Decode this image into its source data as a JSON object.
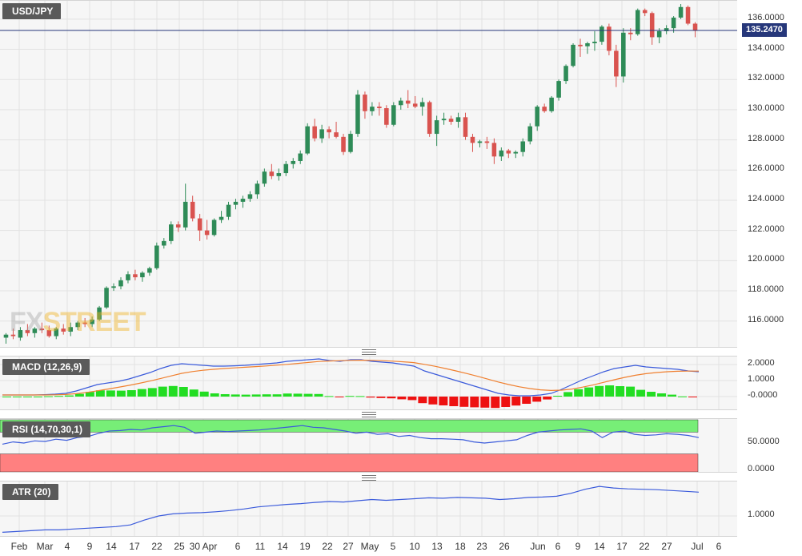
{
  "symbol": "USD/JPY",
  "last_price": "135.2470",
  "last_price_value": 135.247,
  "watermark": {
    "main": "FX",
    "accent": "STREET"
  },
  "colors": {
    "up": "#2e8b57",
    "down": "#d9534f",
    "macd_line": "#3b5bdb",
    "signal_line": "#f08030",
    "hist_pos": "#22dd22",
    "hist_neg": "#ee1111",
    "rsi_line": "#3b5bdb",
    "atr_line": "#3b5bdb",
    "last_price": "#26377a",
    "overbought_zone": "#77ee77",
    "oversold_zone": "#ff8080"
  },
  "panes": {
    "macd": {
      "title": "MACD (12,26,9)",
      "ticks": [
        "2.0000",
        "1.0000",
        "-0.0000"
      ]
    },
    "rsi": {
      "title": "RSI (14,70,30,1)",
      "ticks": [
        "50.0000",
        "0.0000"
      ]
    },
    "atr": {
      "title": "ATR (20)",
      "ticks": [
        "1.0000"
      ]
    }
  },
  "x_labels": [
    "Feb",
    "Mar",
    "4",
    "9",
    "14",
    "17",
    "22",
    "25",
    "30 Apr",
    "6",
    "11",
    "14",
    "19",
    "22",
    "27",
    "May",
    "5",
    "10",
    "13",
    "18",
    "23",
    "26",
    "Jun",
    "6",
    "9",
    "14",
    "17",
    "22",
    "27",
    "Jul",
    "6"
  ],
  "chart_data": [
    {
      "type": "candlestick",
      "title": "USD/JPY",
      "y_ticks": [
        "116.0000",
        "118.0000",
        "120.0000",
        "122.0000",
        "124.0000",
        "126.0000",
        "128.0000",
        "130.0000",
        "132.0000",
        "134.0000",
        "136.0000"
      ],
      "ylim": [
        114.5,
        137.0
      ],
      "grid": true,
      "candles": [
        {
          "o": 114.9,
          "h": 115.2,
          "l": 114.5,
          "c": 115.1
        },
        {
          "o": 115.1,
          "h": 115.5,
          "l": 114.8,
          "c": 115.0
        },
        {
          "o": 114.9,
          "h": 115.6,
          "l": 114.7,
          "c": 115.4
        },
        {
          "o": 115.4,
          "h": 115.8,
          "l": 115.0,
          "c": 115.2
        },
        {
          "o": 115.2,
          "h": 115.6,
          "l": 114.9,
          "c": 115.5
        },
        {
          "o": 115.5,
          "h": 115.9,
          "l": 115.2,
          "c": 115.4
        },
        {
          "o": 115.4,
          "h": 115.7,
          "l": 114.9,
          "c": 115.0
        },
        {
          "o": 115.0,
          "h": 115.6,
          "l": 114.8,
          "c": 115.5
        },
        {
          "o": 115.5,
          "h": 115.8,
          "l": 115.1,
          "c": 115.3
        },
        {
          "o": 115.3,
          "h": 115.9,
          "l": 115.0,
          "c": 115.6
        },
        {
          "o": 115.6,
          "h": 116.0,
          "l": 115.4,
          "c": 115.9
        },
        {
          "o": 115.9,
          "h": 116.2,
          "l": 115.6,
          "c": 115.8
        },
        {
          "o": 115.8,
          "h": 116.3,
          "l": 115.6,
          "c": 116.1
        },
        {
          "o": 116.1,
          "h": 117.0,
          "l": 116.0,
          "c": 116.9
        },
        {
          "o": 116.9,
          "h": 118.3,
          "l": 116.8,
          "c": 118.2
        },
        {
          "o": 118.2,
          "h": 118.5,
          "l": 118.0,
          "c": 118.3
        },
        {
          "o": 118.3,
          "h": 118.9,
          "l": 118.1,
          "c": 118.7
        },
        {
          "o": 118.7,
          "h": 119.3,
          "l": 118.5,
          "c": 119.1
        },
        {
          "o": 119.1,
          "h": 119.4,
          "l": 118.7,
          "c": 118.9
        },
        {
          "o": 118.9,
          "h": 119.3,
          "l": 118.6,
          "c": 119.2
        },
        {
          "o": 119.2,
          "h": 119.6,
          "l": 119.0,
          "c": 119.5
        },
        {
          "o": 119.5,
          "h": 121.2,
          "l": 119.4,
          "c": 121.0
        },
        {
          "o": 121.0,
          "h": 121.5,
          "l": 120.8,
          "c": 121.3
        },
        {
          "o": 121.3,
          "h": 122.6,
          "l": 121.1,
          "c": 122.4
        },
        {
          "o": 122.4,
          "h": 122.6,
          "l": 121.9,
          "c": 122.2
        },
        {
          "o": 122.2,
          "h": 125.1,
          "l": 122.0,
          "c": 123.9
        },
        {
          "o": 123.9,
          "h": 124.3,
          "l": 122.6,
          "c": 122.8
        },
        {
          "o": 122.8,
          "h": 123.1,
          "l": 121.3,
          "c": 122.0
        },
        {
          "o": 122.0,
          "h": 122.7,
          "l": 121.4,
          "c": 121.7
        },
        {
          "o": 121.7,
          "h": 122.8,
          "l": 121.6,
          "c": 122.7
        },
        {
          "o": 122.7,
          "h": 123.3,
          "l": 122.5,
          "c": 122.9
        },
        {
          "o": 122.9,
          "h": 123.9,
          "l": 122.7,
          "c": 123.7
        },
        {
          "o": 123.7,
          "h": 124.1,
          "l": 123.4,
          "c": 123.9
        },
        {
          "o": 123.9,
          "h": 124.3,
          "l": 123.5,
          "c": 124.1
        },
        {
          "o": 124.1,
          "h": 124.6,
          "l": 123.9,
          "c": 124.4
        },
        {
          "o": 124.4,
          "h": 125.3,
          "l": 124.1,
          "c": 125.1
        },
        {
          "o": 125.1,
          "h": 126.1,
          "l": 124.9,
          "c": 125.9
        },
        {
          "o": 125.9,
          "h": 126.4,
          "l": 125.4,
          "c": 125.6
        },
        {
          "o": 125.6,
          "h": 126.1,
          "l": 125.3,
          "c": 125.8
        },
        {
          "o": 125.8,
          "h": 126.6,
          "l": 125.6,
          "c": 126.4
        },
        {
          "o": 126.4,
          "h": 126.8,
          "l": 126.1,
          "c": 126.6
        },
        {
          "o": 126.6,
          "h": 127.3,
          "l": 126.4,
          "c": 127.1
        },
        {
          "o": 127.1,
          "h": 129.1,
          "l": 127.0,
          "c": 128.9
        },
        {
          "o": 128.9,
          "h": 129.4,
          "l": 127.9,
          "c": 128.1
        },
        {
          "o": 128.1,
          "h": 129.0,
          "l": 127.8,
          "c": 128.7
        },
        {
          "o": 128.7,
          "h": 128.9,
          "l": 128.1,
          "c": 128.5
        },
        {
          "o": 128.5,
          "h": 129.2,
          "l": 128.1,
          "c": 128.2
        },
        {
          "o": 128.2,
          "h": 128.4,
          "l": 127.0,
          "c": 127.2
        },
        {
          "o": 127.2,
          "h": 128.6,
          "l": 127.1,
          "c": 128.4
        },
        {
          "o": 128.4,
          "h": 131.3,
          "l": 128.2,
          "c": 131.0
        },
        {
          "o": 131.0,
          "h": 131.2,
          "l": 129.4,
          "c": 129.9
        },
        {
          "o": 129.9,
          "h": 130.5,
          "l": 129.6,
          "c": 130.2
        },
        {
          "o": 130.2,
          "h": 130.5,
          "l": 129.6,
          "c": 130.1
        },
        {
          "o": 130.1,
          "h": 130.3,
          "l": 128.8,
          "c": 129.0
        },
        {
          "o": 129.0,
          "h": 130.5,
          "l": 128.9,
          "c": 130.3
        },
        {
          "o": 130.3,
          "h": 130.8,
          "l": 130.0,
          "c": 130.6
        },
        {
          "o": 130.6,
          "h": 131.3,
          "l": 130.1,
          "c": 130.4
        },
        {
          "o": 130.4,
          "h": 130.9,
          "l": 130.1,
          "c": 130.2
        },
        {
          "o": 130.2,
          "h": 130.8,
          "l": 129.6,
          "c": 130.5
        },
        {
          "o": 130.5,
          "h": 130.6,
          "l": 128.2,
          "c": 128.4
        },
        {
          "o": 128.4,
          "h": 129.6,
          "l": 127.6,
          "c": 129.3
        },
        {
          "o": 129.3,
          "h": 129.8,
          "l": 129.0,
          "c": 129.4
        },
        {
          "o": 129.4,
          "h": 129.6,
          "l": 129.0,
          "c": 129.2
        },
        {
          "o": 129.2,
          "h": 129.8,
          "l": 128.8,
          "c": 129.5
        },
        {
          "o": 129.5,
          "h": 129.8,
          "l": 128.0,
          "c": 128.2
        },
        {
          "o": 128.2,
          "h": 128.4,
          "l": 127.2,
          "c": 127.8
        },
        {
          "o": 127.8,
          "h": 128.0,
          "l": 127.5,
          "c": 127.9
        },
        {
          "o": 127.9,
          "h": 128.2,
          "l": 127.4,
          "c": 127.8
        },
        {
          "o": 127.8,
          "h": 128.1,
          "l": 126.4,
          "c": 126.9
        },
        {
          "o": 126.9,
          "h": 127.5,
          "l": 126.6,
          "c": 127.3
        },
        {
          "o": 127.3,
          "h": 127.4,
          "l": 126.8,
          "c": 127.1
        },
        {
          "o": 127.1,
          "h": 127.3,
          "l": 126.8,
          "c": 127.2
        },
        {
          "o": 127.2,
          "h": 128.1,
          "l": 126.9,
          "c": 127.9
        },
        {
          "o": 127.9,
          "h": 129.1,
          "l": 127.7,
          "c": 128.9
        },
        {
          "o": 128.9,
          "h": 130.3,
          "l": 128.6,
          "c": 130.2
        },
        {
          "o": 130.2,
          "h": 130.4,
          "l": 129.8,
          "c": 129.9
        },
        {
          "o": 129.9,
          "h": 130.9,
          "l": 129.8,
          "c": 130.8
        },
        {
          "o": 130.8,
          "h": 132.0,
          "l": 130.6,
          "c": 131.9
        },
        {
          "o": 131.9,
          "h": 133.0,
          "l": 131.7,
          "c": 132.9
        },
        {
          "o": 132.9,
          "h": 134.4,
          "l": 132.8,
          "c": 134.3
        },
        {
          "o": 134.3,
          "h": 134.7,
          "l": 133.5,
          "c": 134.2
        },
        {
          "o": 134.2,
          "h": 134.5,
          "l": 133.7,
          "c": 134.4
        },
        {
          "o": 134.4,
          "h": 135.2,
          "l": 133.9,
          "c": 134.5
        },
        {
          "o": 134.5,
          "h": 135.6,
          "l": 134.3,
          "c": 135.5
        },
        {
          "o": 135.5,
          "h": 135.7,
          "l": 133.6,
          "c": 133.9
        },
        {
          "o": 133.9,
          "h": 134.3,
          "l": 131.5,
          "c": 132.2
        },
        {
          "o": 132.2,
          "h": 135.4,
          "l": 131.8,
          "c": 135.1
        },
        {
          "o": 135.1,
          "h": 135.4,
          "l": 134.6,
          "c": 135.0
        },
        {
          "o": 135.0,
          "h": 136.7,
          "l": 134.9,
          "c": 136.6
        },
        {
          "o": 136.6,
          "h": 136.7,
          "l": 136.2,
          "c": 136.4
        },
        {
          "o": 136.4,
          "h": 136.5,
          "l": 134.3,
          "c": 134.8
        },
        {
          "o": 134.8,
          "h": 135.4,
          "l": 134.4,
          "c": 135.2
        },
        {
          "o": 135.2,
          "h": 135.6,
          "l": 135.0,
          "c": 135.4
        },
        {
          "o": 135.4,
          "h": 136.2,
          "l": 135.1,
          "c": 136.1
        },
        {
          "o": 136.1,
          "h": 137.0,
          "l": 136.0,
          "c": 136.8
        },
        {
          "o": 136.8,
          "h": 136.9,
          "l": 135.6,
          "c": 135.7
        },
        {
          "o": 135.7,
          "h": 135.8,
          "l": 134.8,
          "c": 135.25
        }
      ]
    },
    {
      "type": "line",
      "title": "MACD (12,26,9)",
      "y_ticks": [
        "2.0000",
        "1.0000",
        "-0.0000"
      ],
      "ylim": [
        -0.6,
        2.3
      ],
      "series": [
        {
          "name": "MACD",
          "values": [
            0.1,
            0.1,
            0.1,
            0.1,
            0.12,
            0.15,
            0.2,
            0.35,
            0.55,
            0.75,
            0.85,
            0.95,
            1.1,
            1.3,
            1.5,
            1.75,
            1.95,
            2.05,
            2.0,
            1.95,
            1.9,
            1.9,
            1.92,
            1.95,
            2.0,
            2.05,
            2.1,
            2.2,
            2.25,
            2.3,
            2.35,
            2.25,
            2.2,
            2.3,
            2.3,
            2.2,
            2.15,
            2.1,
            2.0,
            1.9,
            1.6,
            1.4,
            1.2,
            1.0,
            0.8,
            0.6,
            0.4,
            0.2,
            0.1,
            0.05,
            0.05,
            0.1,
            0.2,
            0.45,
            0.75,
            1.05,
            1.3,
            1.55,
            1.75,
            1.85,
            1.95,
            1.85,
            1.8,
            1.75,
            1.7,
            1.6,
            1.55
          ]
        },
        {
          "name": "Signal",
          "values": [
            0.1,
            0.1,
            0.1,
            0.1,
            0.1,
            0.11,
            0.13,
            0.18,
            0.26,
            0.36,
            0.47,
            0.58,
            0.7,
            0.83,
            0.97,
            1.13,
            1.29,
            1.45,
            1.56,
            1.64,
            1.7,
            1.75,
            1.79,
            1.83,
            1.87,
            1.91,
            1.96,
            2.01,
            2.07,
            2.13,
            2.19,
            2.22,
            2.24,
            2.26,
            2.27,
            2.26,
            2.24,
            2.21,
            2.17,
            2.12,
            2.01,
            1.89,
            1.75,
            1.6,
            1.44,
            1.27,
            1.09,
            0.91,
            0.75,
            0.61,
            0.5,
            0.42,
            0.38,
            0.4,
            0.47,
            0.59,
            0.73,
            0.89,
            1.05,
            1.2,
            1.33,
            1.43,
            1.5,
            1.55,
            1.58,
            1.59,
            1.59
          ]
        }
      ],
      "histogram": [
        0.0,
        0.0,
        0.0,
        0.0,
        0.02,
        0.04,
        0.07,
        0.17,
        0.29,
        0.39,
        0.38,
        0.37,
        0.4,
        0.47,
        0.53,
        0.62,
        0.66,
        0.6,
        0.44,
        0.31,
        0.2,
        0.15,
        0.13,
        0.12,
        0.13,
        0.14,
        0.14,
        0.19,
        0.18,
        0.17,
        0.16,
        0.03,
        -0.04,
        0.04,
        0.03,
        -0.06,
        -0.09,
        -0.11,
        -0.17,
        -0.22,
        -0.41,
        -0.49,
        -0.55,
        -0.6,
        -0.64,
        -0.67,
        -0.69,
        -0.71,
        -0.65,
        -0.56,
        -0.45,
        -0.32,
        -0.18,
        0.05,
        0.28,
        0.46,
        0.57,
        0.66,
        0.7,
        0.65,
        0.62,
        0.42,
        0.3,
        0.2,
        0.12,
        0.01,
        -0.04
      ]
    },
    {
      "type": "line",
      "title": "RSI (14,70,30,1)",
      "y_ticks": [
        "50.0000",
        "0.0000"
      ],
      "ylim": [
        0,
        100
      ],
      "zones": {
        "overbought": 70,
        "oversold": 30
      },
      "series": [
        {
          "name": "RSI",
          "values": [
            48,
            52,
            50,
            54,
            53,
            57,
            55,
            60,
            62,
            68,
            72,
            73,
            75,
            74,
            78,
            80,
            82,
            79,
            68,
            70,
            72,
            71,
            72,
            73,
            74,
            76,
            78,
            80,
            82,
            79,
            78,
            75,
            72,
            68,
            70,
            66,
            67,
            62,
            64,
            60,
            58,
            58,
            57,
            56,
            52,
            50,
            52,
            54,
            56,
            64,
            70,
            72,
            74,
            75,
            76,
            72,
            60,
            70,
            72,
            66,
            64,
            65,
            67,
            66,
            64,
            60
          ]
        }
      ]
    },
    {
      "type": "line",
      "title": "ATR (20)",
      "y_ticks": [
        "1.0000"
      ],
      "series": [
        {
          "name": "ATR",
          "values": [
            0.6,
            0.62,
            0.64,
            0.66,
            0.66,
            0.68,
            0.7,
            0.72,
            0.74,
            0.78,
            0.9,
            1.0,
            1.05,
            1.07,
            1.08,
            1.1,
            1.13,
            1.17,
            1.22,
            1.25,
            1.28,
            1.3,
            1.33,
            1.35,
            1.34,
            1.37,
            1.4,
            1.38,
            1.4,
            1.42,
            1.44,
            1.43,
            1.45,
            1.44,
            1.43,
            1.4,
            1.42,
            1.45,
            1.46,
            1.48,
            1.55,
            1.65,
            1.72,
            1.68,
            1.66,
            1.65,
            1.64,
            1.62,
            1.6,
            1.58
          ]
        }
      ]
    }
  ]
}
